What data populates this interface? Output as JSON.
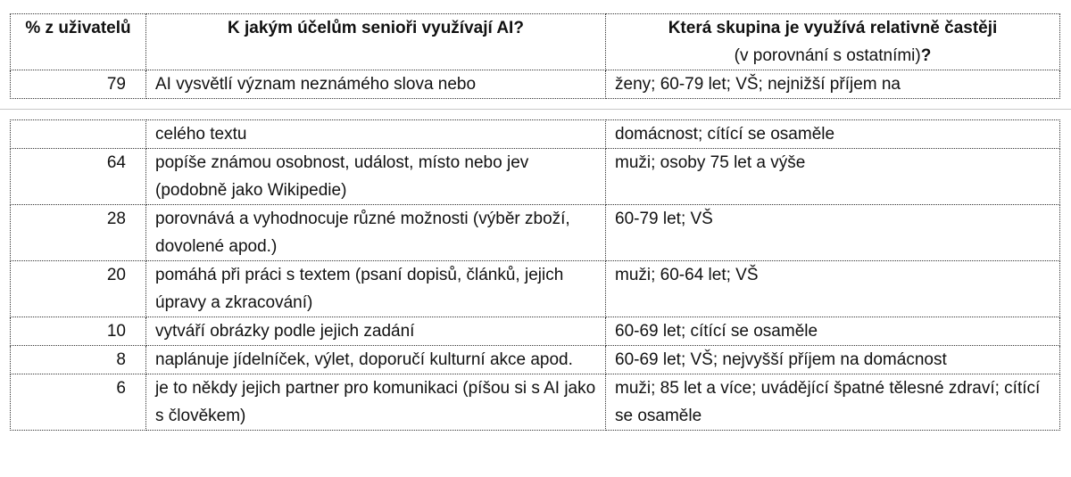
{
  "header": {
    "col1": "% z uživatelů",
    "col2": "K jakým účelům senioři využívají AI?",
    "col3_line1": "Která skupina je využívá relativně častěji",
    "col3_line2": "(v porovnání s ostatními)",
    "col3_qmark": "?"
  },
  "page1_rows": [
    {
      "pct": "79",
      "purpose": "AI vysvětlí význam neznámého slova nebo",
      "groups": "ženy; 60-79 let; VŠ; nejnižší příjem na"
    }
  ],
  "page2_rows": [
    {
      "pct": "",
      "purpose": "celého textu",
      "groups": "domácnost; cítící se osaměle"
    },
    {
      "pct": "64",
      "purpose": "popíše známou osobnost, událost, místo nebo jev (podobně jako Wikipedie)",
      "groups": "muži; osoby 75 let a výše"
    },
    {
      "pct": "28",
      "purpose": "porovnává a vyhodnocuje různé možnosti (výběr zboží, dovolené apod.)",
      "groups": "60-79 let; VŠ"
    },
    {
      "pct": "20",
      "purpose": "pomáhá při práci s textem (psaní dopisů, článků, jejich úpravy a zkracování)",
      "groups": "muži; 60-64 let; VŠ"
    },
    {
      "pct": "10",
      "purpose": "vytváří obrázky podle jejich zadání",
      "groups": "60-69 let; cítící se osaměle"
    },
    {
      "pct": "8",
      "purpose": "naplánuje jídelníček, výlet, doporučí kulturní akce apod.",
      "groups": "60-69 let; VŠ; nejvyšší příjem na domácnost"
    },
    {
      "pct": "6",
      "purpose": "je to někdy jejich partner pro komunikaci (píšou si s AI jako s člověkem)",
      "groups": "muži; 85 let a více; uvádějící špatné tělesné zdraví; cítící se osaměle"
    }
  ]
}
